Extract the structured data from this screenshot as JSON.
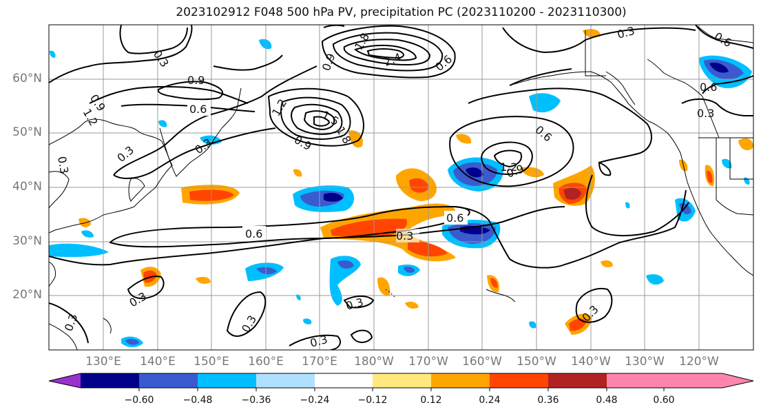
{
  "title": "2023102912 F048 500 hPa PV, precipitation PC (2023110200 - 2023110300)",
  "lat_labels": [
    "60°N",
    "50°N",
    "40°N",
    "30°N",
    "20°N"
  ],
  "lon_labels": [
    "130°E",
    "140°E",
    "150°E",
    "160°E",
    "170°E",
    "180°W",
    "170°W",
    "160°W",
    "150°W",
    "140°W",
    "130°W",
    "120°W"
  ],
  "colorbar": {
    "ticks": [
      "−0.60",
      "−0.48",
      "−0.36",
      "−0.24",
      "−0.12",
      "0.12",
      "0.24",
      "0.36",
      "0.48",
      "0.60"
    ],
    "colors": [
      "#9932cc",
      "#00008b",
      "#3a5bd0",
      "#00bfff",
      "#b0e0ff",
      "#ffffff",
      "#ffe97f",
      "#ffa500",
      "#ff4500",
      "#b22222",
      "#ff85b0"
    ]
  },
  "contour_labels": [
    "0.3",
    "0.6",
    "0.9",
    "1.2",
    "1.5",
    "1.8",
    "2.1",
    "2.4"
  ],
  "colors": {
    "land_lines": "#000000",
    "grid": "#999999",
    "contour": "#000000"
  }
}
